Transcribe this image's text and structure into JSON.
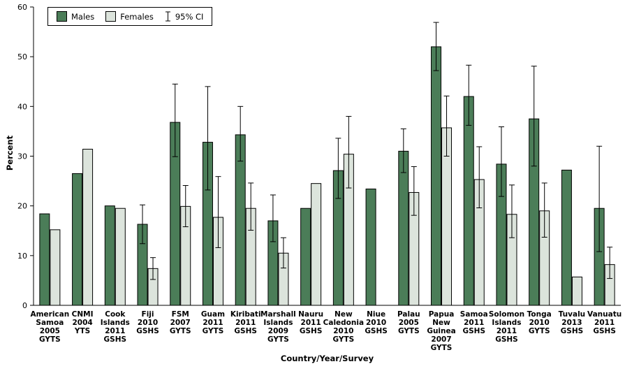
{
  "legend": {
    "males": "Males",
    "females": "Females",
    "ci": "95% CI"
  },
  "axes": {
    "y": "Percent",
    "x": "Country/Year/Survey"
  },
  "chart_data": {
    "type": "bar",
    "title": "",
    "xlabel": "Country/Year/Survey",
    "ylabel": "Percent",
    "ylim": [
      0,
      60
    ],
    "yticks": [
      0,
      10,
      20,
      30,
      40,
      50,
      60
    ],
    "grid": false,
    "legend_position": "top-left",
    "error_bars": "95% CI",
    "colors": {
      "Males": "#4b7d58",
      "Females": "#dce4dc"
    },
    "categories": [
      [
        "American",
        "Samoa",
        "2005",
        "GYTS"
      ],
      [
        "CNMI",
        "2004",
        "YTS"
      ],
      [
        "Cook",
        "Islands",
        "2011",
        "GSHS"
      ],
      [
        "Fiji",
        "2010",
        "GSHS"
      ],
      [
        "FSM",
        "2007",
        "GYTS"
      ],
      [
        "Guam",
        "2011",
        "GYTS"
      ],
      [
        "Kiribati",
        "2011",
        "GSHS"
      ],
      [
        "Marshall",
        "Islands",
        "2009",
        "GYTS"
      ],
      [
        "Nauru",
        "2011",
        "GSHS"
      ],
      [
        "New",
        "Caledonia",
        "2010",
        "GYTS"
      ],
      [
        "Niue",
        "2010",
        "GSHS"
      ],
      [
        "Palau",
        "2005",
        "GYTS"
      ],
      [
        "Papua",
        "New",
        "Guinea",
        "2007",
        "GYTS"
      ],
      [
        "Samoa",
        "2011",
        "GSHS"
      ],
      [
        "Solomon",
        "Islands",
        "2011",
        "GSHS"
      ],
      [
        "Tonga",
        "2010",
        "GYTS"
      ],
      [
        "Tuvalu",
        "2013",
        "GSHS"
      ],
      [
        "Vanuatu",
        "2011",
        "GSHS"
      ]
    ],
    "series": [
      {
        "name": "Males",
        "values": [
          18.4,
          26.5,
          20.0,
          16.3,
          36.8,
          32.8,
          34.3,
          17.0,
          19.5,
          27.1,
          23.4,
          31.0,
          52.0,
          42.0,
          28.4,
          37.5,
          27.2,
          19.5
        ],
        "ci_low": [
          null,
          null,
          null,
          12.4,
          29.9,
          23.2,
          29.0,
          12.8,
          null,
          21.5,
          null,
          26.7,
          47.2,
          36.2,
          21.9,
          28.0,
          null,
          10.8
        ],
        "ci_high": [
          null,
          null,
          null,
          20.2,
          44.5,
          44.0,
          40.0,
          22.2,
          null,
          33.6,
          null,
          35.5,
          56.9,
          48.3,
          35.9,
          48.1,
          null,
          32.0
        ]
      },
      {
        "name": "Females",
        "values": [
          15.2,
          31.4,
          19.5,
          7.4,
          19.9,
          17.7,
          19.5,
          10.5,
          24.5,
          30.4,
          null,
          22.7,
          35.7,
          25.3,
          18.3,
          19.0,
          5.7,
          8.2
        ],
        "ci_low": [
          null,
          null,
          null,
          5.2,
          15.8,
          11.6,
          15.1,
          7.5,
          null,
          23.6,
          null,
          18.1,
          30.0,
          19.6,
          13.6,
          13.7,
          null,
          5.4
        ],
        "ci_high": [
          null,
          null,
          null,
          9.6,
          24.1,
          25.9,
          24.6,
          13.6,
          null,
          38.0,
          null,
          27.9,
          42.1,
          31.9,
          24.2,
          24.6,
          null,
          11.7
        ]
      }
    ]
  }
}
